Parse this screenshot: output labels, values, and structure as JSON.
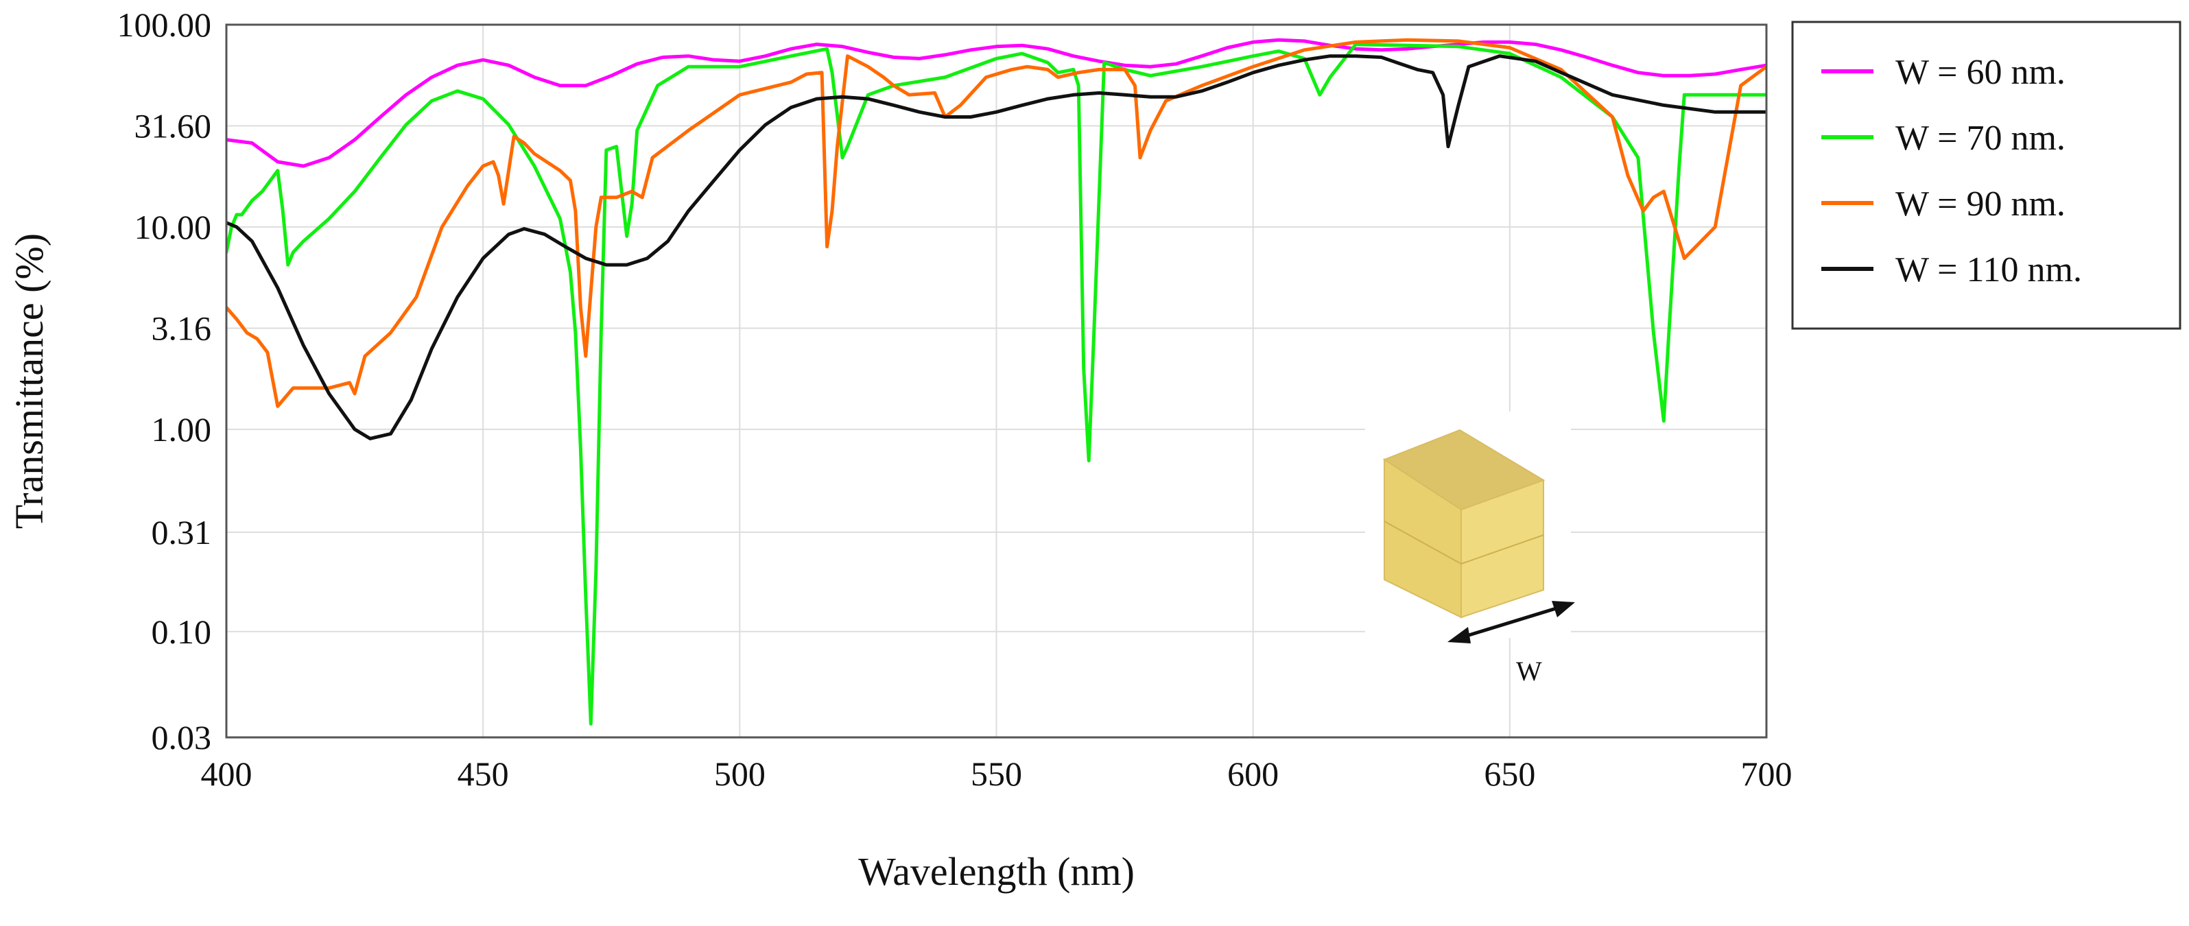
{
  "chart_data": {
    "type": "line",
    "title": "",
    "xlabel": "Wavelength (nm)",
    "ylabel": "Transmittance (%)",
    "xscale": "linear",
    "yscale": "log",
    "xlim": [
      400,
      700
    ],
    "ylim": [
      0.03,
      100
    ],
    "grid": true,
    "legend_position": "outside-top-right",
    "x_ticks": [
      400,
      450,
      500,
      550,
      600,
      650,
      700
    ],
    "x_tick_labels": [
      "400",
      "450",
      "500",
      "550",
      "600",
      "650",
      "700"
    ],
    "y_ticks": [
      0.03,
      0.1,
      0.31,
      1.0,
      3.16,
      10.0,
      31.6,
      100.0
    ],
    "y_tick_labels": [
      "0.03",
      "0.10",
      "0.31",
      "1.00",
      "3.16",
      "10.00",
      "31.60",
      "100.00"
    ],
    "inset_label": "W",
    "series": [
      {
        "name": "W = 60 nm.",
        "color": "#ff00ff",
        "points": [
          [
            400,
            27
          ],
          [
            405,
            26
          ],
          [
            410,
            21
          ],
          [
            415,
            20
          ],
          [
            420,
            22
          ],
          [
            425,
            27
          ],
          [
            430,
            35
          ],
          [
            435,
            45
          ],
          [
            440,
            55
          ],
          [
            445,
            63
          ],
          [
            450,
            67
          ],
          [
            455,
            63
          ],
          [
            460,
            55
          ],
          [
            465,
            50
          ],
          [
            470,
            50
          ],
          [
            475,
            56
          ],
          [
            480,
            64
          ],
          [
            485,
            69
          ],
          [
            490,
            70
          ],
          [
            495,
            67
          ],
          [
            500,
            66
          ],
          [
            505,
            70
          ],
          [
            510,
            76
          ],
          [
            515,
            80
          ],
          [
            520,
            78
          ],
          [
            525,
            73
          ],
          [
            530,
            69
          ],
          [
            535,
            68
          ],
          [
            540,
            71
          ],
          [
            545,
            75
          ],
          [
            550,
            78
          ],
          [
            555,
            79
          ],
          [
            560,
            76
          ],
          [
            565,
            70
          ],
          [
            570,
            66
          ],
          [
            575,
            63
          ],
          [
            580,
            62
          ],
          [
            585,
            64
          ],
          [
            590,
            70
          ],
          [
            595,
            77
          ],
          [
            600,
            82
          ],
          [
            605,
            84
          ],
          [
            610,
            83
          ],
          [
            615,
            79
          ],
          [
            620,
            76
          ],
          [
            625,
            75
          ],
          [
            630,
            76
          ],
          [
            635,
            78
          ],
          [
            640,
            80
          ],
          [
            645,
            82
          ],
          [
            650,
            82
          ],
          [
            655,
            80
          ],
          [
            660,
            75
          ],
          [
            665,
            69
          ],
          [
            670,
            63
          ],
          [
            675,
            58
          ],
          [
            680,
            56
          ],
          [
            685,
            56
          ],
          [
            690,
            57
          ],
          [
            695,
            60
          ],
          [
            700,
            63
          ]
        ]
      },
      {
        "name": "W = 70 nm.",
        "color": "#11ee11",
        "points": [
          [
            400,
            7.5
          ],
          [
            401,
            10
          ],
          [
            402,
            11.5
          ],
          [
            403,
            11.5
          ],
          [
            405,
            13.5
          ],
          [
            407,
            15
          ],
          [
            410,
            19
          ],
          [
            411,
            12
          ],
          [
            412,
            6.5
          ],
          [
            413,
            7.5
          ],
          [
            415,
            8.5
          ],
          [
            420,
            11
          ],
          [
            425,
            15
          ],
          [
            430,
            22
          ],
          [
            435,
            32
          ],
          [
            440,
            42
          ],
          [
            445,
            47
          ],
          [
            450,
            43
          ],
          [
            455,
            32
          ],
          [
            460,
            20
          ],
          [
            465,
            11
          ],
          [
            467,
            6
          ],
          [
            468,
            3
          ],
          [
            469,
            0.8
          ],
          [
            470,
            0.15
          ],
          [
            471,
            0.035
          ],
          [
            472,
            0.2
          ],
          [
            473,
            3
          ],
          [
            474,
            24
          ],
          [
            476,
            25
          ],
          [
            477,
            15
          ],
          [
            478,
            9
          ],
          [
            479,
            13
          ],
          [
            480,
            30
          ],
          [
            484,
            50
          ],
          [
            490,
            62
          ],
          [
            500,
            62
          ],
          [
            510,
            70
          ],
          [
            517,
            76
          ],
          [
            518,
            58
          ],
          [
            520,
            22
          ],
          [
            521,
            25
          ],
          [
            525,
            45
          ],
          [
            530,
            50
          ],
          [
            540,
            55
          ],
          [
            550,
            68
          ],
          [
            555,
            72
          ],
          [
            560,
            65
          ],
          [
            562,
            58
          ],
          [
            565,
            60
          ],
          [
            566,
            50
          ],
          [
            567,
            2
          ],
          [
            568,
            0.7
          ],
          [
            569,
            3
          ],
          [
            571,
            65
          ],
          [
            575,
            60
          ],
          [
            580,
            56
          ],
          [
            590,
            62
          ],
          [
            600,
            70
          ],
          [
            605,
            74
          ],
          [
            610,
            68
          ],
          [
            613,
            45
          ],
          [
            615,
            55
          ],
          [
            620,
            80
          ],
          [
            640,
            78
          ],
          [
            650,
            72
          ],
          [
            660,
            55
          ],
          [
            670,
            35
          ],
          [
            675,
            22
          ],
          [
            678,
            3
          ],
          [
            680,
            1.1
          ],
          [
            681,
            3
          ],
          [
            683,
            20
          ],
          [
            684,
            45
          ],
          [
            690,
            45
          ],
          [
            700,
            45
          ]
        ]
      },
      {
        "name": "W = 90 nm.",
        "color": "#ff6a00",
        "points": [
          [
            400,
            4
          ],
          [
            402,
            3.5
          ],
          [
            404,
            3
          ],
          [
            406,
            2.8
          ],
          [
            408,
            2.4
          ],
          [
            410,
            1.3
          ],
          [
            413,
            1.6
          ],
          [
            420,
            1.6
          ],
          [
            424,
            1.7
          ],
          [
            425,
            1.5
          ],
          [
            427,
            2.3
          ],
          [
            432,
            3
          ],
          [
            437,
            4.5
          ],
          [
            442,
            10
          ],
          [
            447,
            16
          ],
          [
            450,
            20
          ],
          [
            452,
            21
          ],
          [
            453,
            18
          ],
          [
            454,
            13
          ],
          [
            456,
            28
          ],
          [
            458,
            26
          ],
          [
            460,
            23
          ],
          [
            465,
            19
          ],
          [
            467,
            17
          ],
          [
            468,
            12
          ],
          [
            469,
            4
          ],
          [
            470,
            2.3
          ],
          [
            472,
            10
          ],
          [
            473,
            14
          ],
          [
            476,
            14
          ],
          [
            479,
            15
          ],
          [
            481,
            14
          ],
          [
            483,
            22
          ],
          [
            490,
            30
          ],
          [
            500,
            45
          ],
          [
            510,
            52
          ],
          [
            513,
            57
          ],
          [
            516,
            58
          ],
          [
            517,
            8
          ],
          [
            518,
            12
          ],
          [
            519,
            25
          ],
          [
            521,
            70
          ],
          [
            525,
            62
          ],
          [
            528,
            55
          ],
          [
            530,
            50
          ],
          [
            533,
            45
          ],
          [
            538,
            46
          ],
          [
            540,
            35
          ],
          [
            543,
            40
          ],
          [
            548,
            55
          ],
          [
            553,
            60
          ],
          [
            556,
            62
          ],
          [
            560,
            60
          ],
          [
            562,
            55
          ],
          [
            566,
            58
          ],
          [
            570,
            60
          ],
          [
            575,
            60
          ],
          [
            577,
            50
          ],
          [
            578,
            22
          ],
          [
            580,
            30
          ],
          [
            583,
            42
          ],
          [
            590,
            50
          ],
          [
            600,
            62
          ],
          [
            610,
            75
          ],
          [
            620,
            82
          ],
          [
            630,
            84
          ],
          [
            640,
            83
          ],
          [
            650,
            77
          ],
          [
            660,
            60
          ],
          [
            670,
            35
          ],
          [
            673,
            18
          ],
          [
            676,
            12
          ],
          [
            678,
            14
          ],
          [
            680,
            15
          ],
          [
            684,
            7
          ],
          [
            690,
            10
          ],
          [
            695,
            50
          ],
          [
            700,
            62
          ]
        ]
      },
      {
        "name": "W = 110 nm.",
        "color": "#111111",
        "points": [
          [
            400,
            10.5
          ],
          [
            402,
            10
          ],
          [
            405,
            8.5
          ],
          [
            410,
            5
          ],
          [
            415,
            2.6
          ],
          [
            420,
            1.5
          ],
          [
            425,
            1
          ],
          [
            428,
            0.9
          ],
          [
            432,
            0.95
          ],
          [
            436,
            1.4
          ],
          [
            440,
            2.5
          ],
          [
            445,
            4.5
          ],
          [
            450,
            7
          ],
          [
            455,
            9.2
          ],
          [
            458,
            9.8
          ],
          [
            462,
            9.2
          ],
          [
            466,
            8
          ],
          [
            470,
            7
          ],
          [
            474,
            6.5
          ],
          [
            478,
            6.5
          ],
          [
            482,
            7
          ],
          [
            486,
            8.5
          ],
          [
            490,
            12
          ],
          [
            495,
            17
          ],
          [
            500,
            24
          ],
          [
            505,
            32
          ],
          [
            510,
            39
          ],
          [
            515,
            43
          ],
          [
            520,
            44
          ],
          [
            525,
            43
          ],
          [
            530,
            40
          ],
          [
            535,
            37
          ],
          [
            540,
            35
          ],
          [
            545,
            35
          ],
          [
            550,
            37
          ],
          [
            555,
            40
          ],
          [
            560,
            43
          ],
          [
            565,
            45
          ],
          [
            570,
            46
          ],
          [
            575,
            45
          ],
          [
            580,
            44
          ],
          [
            585,
            44
          ],
          [
            590,
            47
          ],
          [
            595,
            52
          ],
          [
            600,
            58
          ],
          [
            605,
            63
          ],
          [
            610,
            67
          ],
          [
            615,
            70
          ],
          [
            620,
            70
          ],
          [
            625,
            69
          ],
          [
            628,
            65
          ],
          [
            632,
            60
          ],
          [
            635,
            58
          ],
          [
            637,
            45
          ],
          [
            638,
            25
          ],
          [
            640,
            40
          ],
          [
            642,
            62
          ],
          [
            648,
            70
          ],
          [
            655,
            66
          ],
          [
            660,
            58
          ],
          [
            670,
            45
          ],
          [
            680,
            40
          ],
          [
            690,
            37
          ],
          [
            700,
            37
          ]
        ]
      }
    ]
  }
}
